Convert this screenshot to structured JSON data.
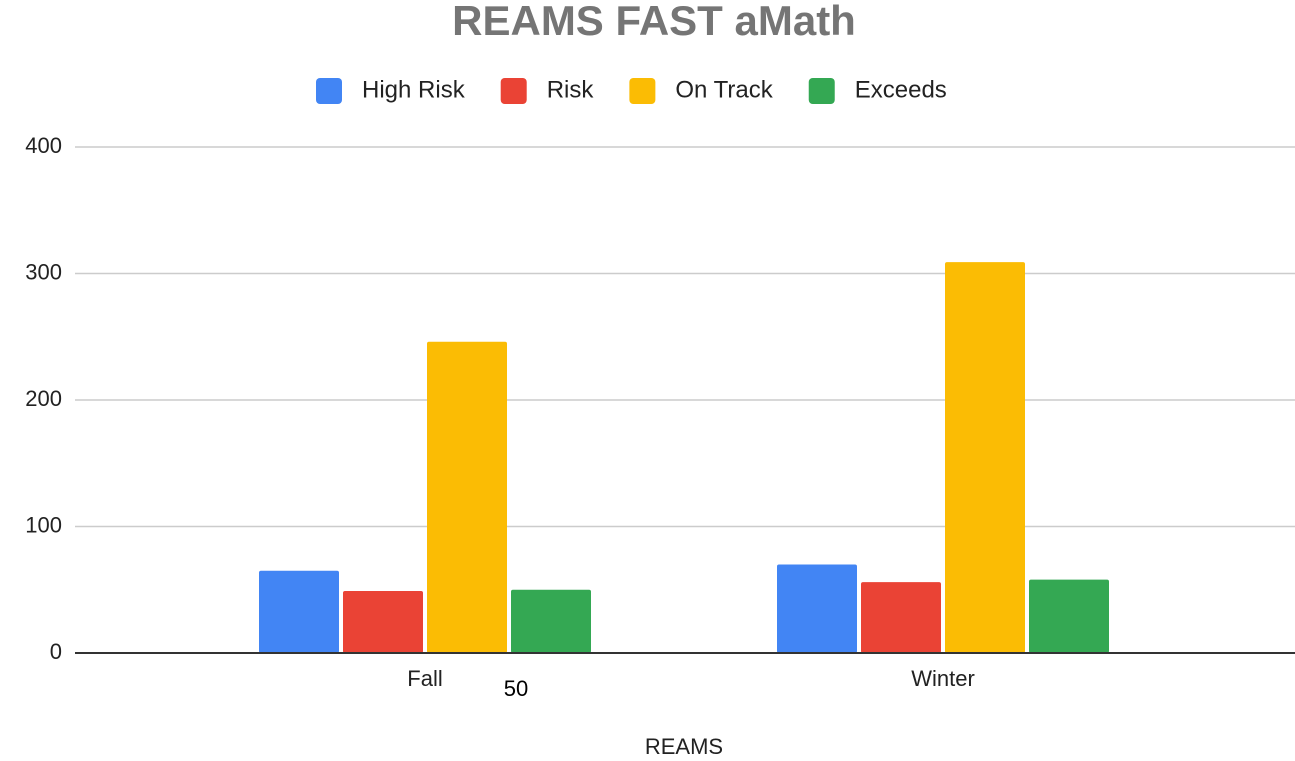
{
  "chart_data": {
    "type": "bar",
    "title": "REAMS FAST aMath",
    "x_label": "REAMS",
    "annotation": "50",
    "categories": [
      "Fall",
      "Winter"
    ],
    "series": [
      {
        "name": "High Risk",
        "color": "#4285f4",
        "values": [
          65,
          70
        ]
      },
      {
        "name": "Risk",
        "color": "#ea4335",
        "values": [
          49,
          56
        ]
      },
      {
        "name": "On Track",
        "color": "#fbbc04",
        "values": [
          246,
          309
        ]
      },
      {
        "name": "Exceeds",
        "color": "#34a853",
        "values": [
          50,
          58
        ]
      }
    ],
    "ylim": [
      0,
      400
    ],
    "yticks": [
      0,
      100,
      200,
      300,
      400
    ],
    "grid": true,
    "legend": "top"
  }
}
